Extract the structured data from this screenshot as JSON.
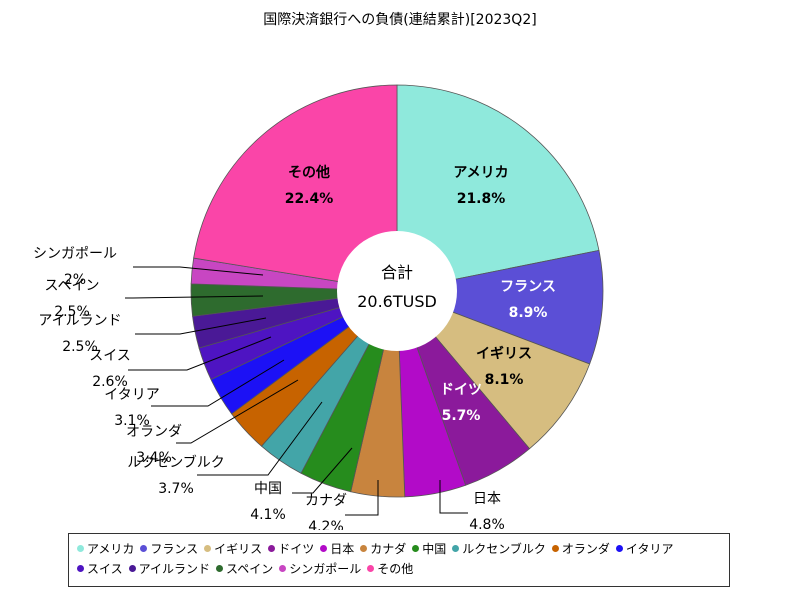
{
  "chart_data": {
    "type": "pie",
    "title": "国際決済銀行への負債(連結累計)[2023Q2]",
    "center_label": "合計",
    "center_value": "20.6TUSD",
    "slices": [
      {
        "name": "アメリカ",
        "pct": "21.8%",
        "value": 21.8,
        "color": "#8fe9dc"
      },
      {
        "name": "フランス",
        "pct": "8.9%",
        "value": 8.9,
        "color": "#5b4fd6"
      },
      {
        "name": "イギリス",
        "pct": "8.1%",
        "value": 8.1,
        "color": "#d6bd80"
      },
      {
        "name": "ドイツ",
        "pct": "5.7%",
        "value": 5.7,
        "color": "#8b1a9b"
      },
      {
        "name": "日本",
        "pct": "4.8%",
        "value": 4.8,
        "color": "#b20bc8"
      },
      {
        "name": "カナダ",
        "pct": "4.2%",
        "value": 4.2,
        "color": "#c8843e"
      },
      {
        "name": "中国",
        "pct": "4.1%",
        "value": 4.1,
        "color": "#268c1d"
      },
      {
        "name": "ルクセンブルク",
        "pct": "3.7%",
        "value": 3.7,
        "color": "#43a5a8"
      },
      {
        "name": "オランダ",
        "pct": "3.4%",
        "value": 3.4,
        "color": "#c76300"
      },
      {
        "name": "イタリア",
        "pct": "3.1%",
        "value": 3.1,
        "color": "#1c11f5"
      },
      {
        "name": "スイス",
        "pct": "2.6%",
        "value": 2.6,
        "color": "#4e14c2"
      },
      {
        "name": "アイルランド",
        "pct": "2.5%",
        "value": 2.5,
        "color": "#4a1996"
      },
      {
        "name": "スペイン",
        "pct": "2.5%",
        "value": 2.5,
        "color": "#2e6b2e"
      },
      {
        "name": "シンガポール",
        "pct": "2%",
        "value": 2.0,
        "color": "#c846c2"
      },
      {
        "name": "その他",
        "pct": "22.4%",
        "value": 22.4,
        "color": "#fa45a8"
      }
    ]
  }
}
